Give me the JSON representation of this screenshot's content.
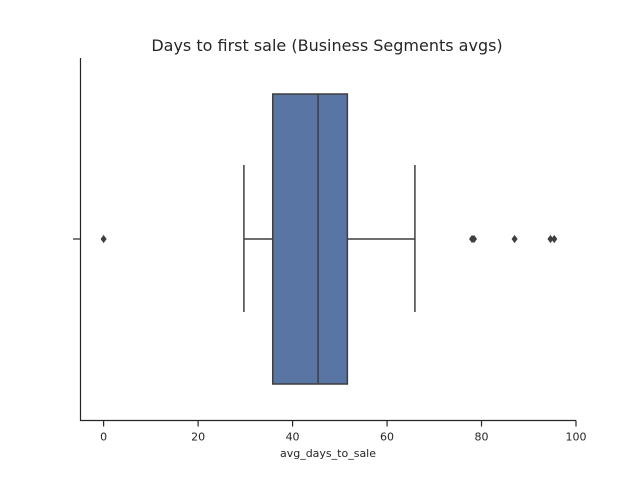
{
  "chart_data": {
    "type": "boxplot",
    "orientation": "horizontal",
    "title": "Days to first sale (Business Segments avgs)",
    "xlabel": "avg_days_to_sale",
    "ylabel": "",
    "xlim": [
      -5,
      100
    ],
    "x_ticks": [
      0,
      20,
      40,
      60,
      80,
      100
    ],
    "grid": false,
    "box": {
      "whisker_low": 29.7,
      "q1": 35.8,
      "median": 45.4,
      "q3": 51.6,
      "whisker_high": 65.9
    },
    "outliers": [
      0.0,
      78.0,
      78.4,
      87.0,
      94.6,
      95.4
    ],
    "colors": {
      "box_fill": "#5875a4",
      "lines": "#3f3f3f",
      "axis": "#262626"
    }
  }
}
